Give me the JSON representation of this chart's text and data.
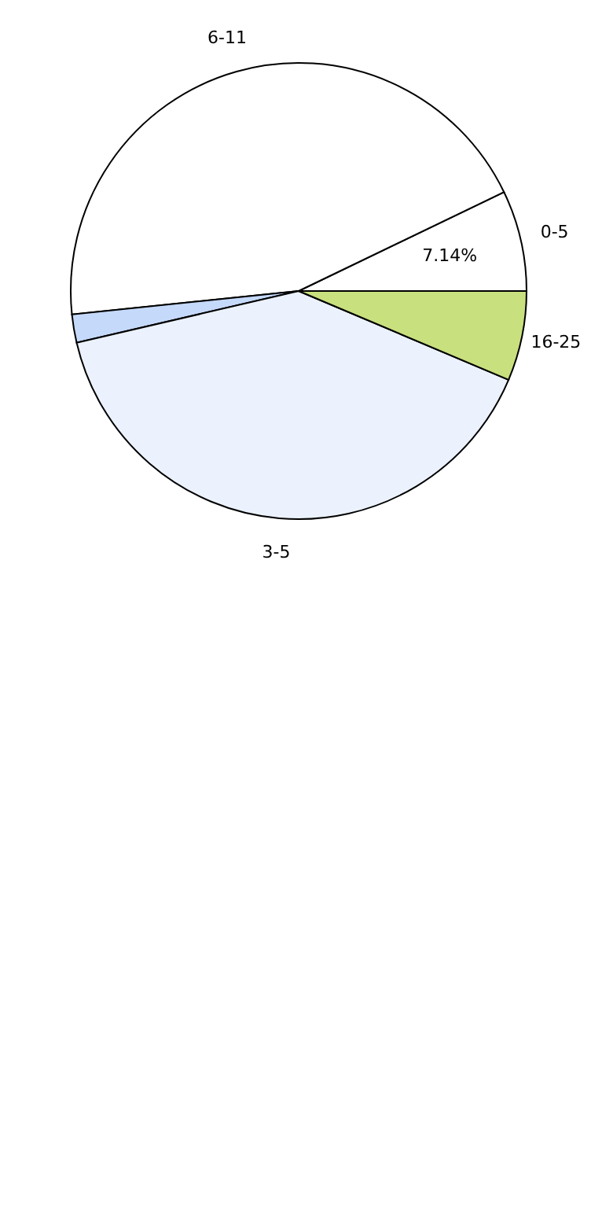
{
  "chart_data": {
    "type": "pie",
    "categories": [
      "0-5",
      "6-11",
      null,
      "3-5",
      "16-25"
    ],
    "values": [
      7.14,
      44.5,
      2,
      40,
      6.36
    ],
    "colors": [
      "#ffffff",
      "#ffffff",
      "#c5d9fb",
      "#ebf2fd",
      "#c9e07e"
    ],
    "value_labels": [
      "7.14%",
      null,
      null,
      null,
      null
    ],
    "legend": false
  }
}
